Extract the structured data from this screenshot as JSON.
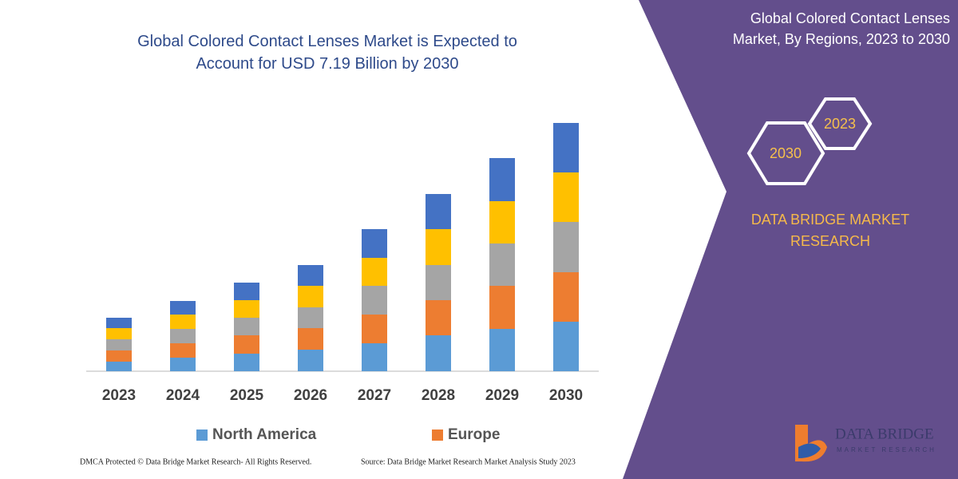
{
  "chart_data": {
    "type": "stacked-bar",
    "title": "Global Colored Contact Lenses Market is Expected to Account for USD 7.19 Billion by 2030",
    "categories": [
      "2023",
      "2024",
      "2025",
      "2026",
      "2027",
      "2028",
      "2029",
      "2030"
    ],
    "series": [
      {
        "name": "North America",
        "color": "#5b9bd5",
        "values": [
          12,
          17,
          22,
          27,
          35,
          45,
          53,
          62
        ]
      },
      {
        "name": "Europe",
        "color": "#ed7d31",
        "values": [
          14,
          18,
          23,
          27,
          36,
          44,
          54,
          62
        ]
      },
      {
        "name": null,
        "color": "#a5a5a5",
        "values": [
          14,
          18,
          22,
          26,
          36,
          44,
          53,
          63
        ]
      },
      {
        "name": null,
        "color": "#ffc000",
        "values": [
          14,
          18,
          22,
          27,
          35,
          45,
          53,
          62
        ]
      },
      {
        "name": null,
        "color": "#4472c4",
        "values": [
          13,
          17,
          22,
          26,
          36,
          44,
          54,
          62
        ]
      }
    ]
  },
  "panel": {
    "title": "Global Colored Contact Lenses Market, By Regions, 2023 to 2030",
    "hex_small": "2023",
    "hex_large": "2030",
    "brand": "DATA BRIDGE MARKET RESEARCH",
    "logo_name": "DATA BRIDGE",
    "logo_sub": "MARKET RESEARCH"
  },
  "footer": {
    "left": "DMCA Protected © Data Bridge Market Research- All Rights Reserved.",
    "right": "Source: Data Bridge Market Research Market Analysis Study 2023"
  }
}
